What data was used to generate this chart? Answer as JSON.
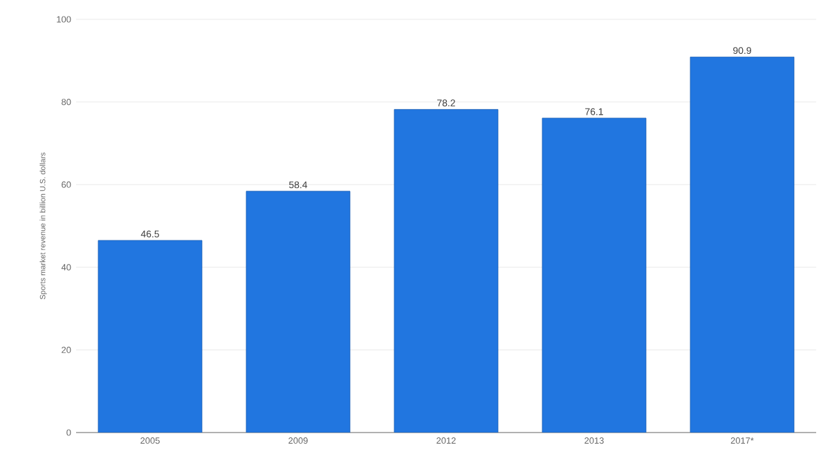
{
  "chart_data": {
    "type": "bar",
    "ylabel": "Sports market revenue in billion U.S. dollars",
    "categories": [
      "2005",
      "2009",
      "2012",
      "2013",
      "2017*"
    ],
    "values": [
      46.5,
      58.4,
      78.2,
      76.1,
      90.9
    ],
    "color": "#2176e0",
    "ylim": [
      0,
      100
    ],
    "yticks": [
      0,
      20,
      40,
      60,
      80,
      100
    ],
    "grid": "y",
    "data_labels": true
  }
}
